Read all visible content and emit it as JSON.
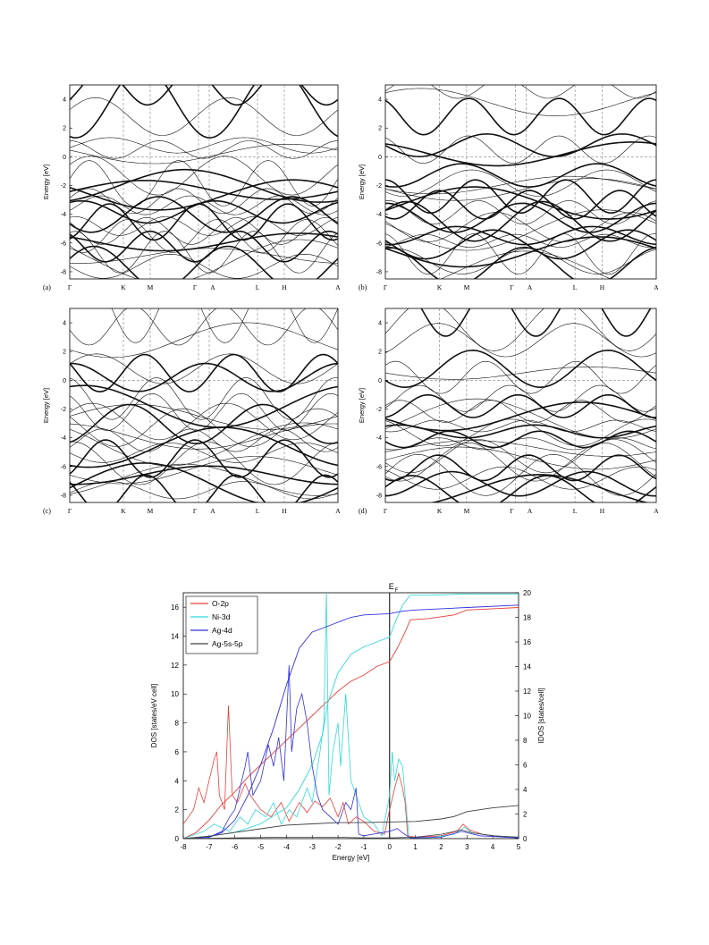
{
  "band_panels": [
    {
      "label": "(a)",
      "ylabel": "Energy [eV]",
      "yticks": [
        "4",
        "2",
        "0",
        "-2",
        "-4",
        "-6",
        "-8"
      ],
      "kpoints": [
        "Γ",
        "K",
        "M",
        "Γ",
        "A",
        "L",
        "H",
        "A"
      ]
    },
    {
      "label": "(b)",
      "ylabel": "Energy [eV]",
      "yticks": [
        "4",
        "2",
        "0",
        "-2",
        "-4",
        "-6",
        "-8"
      ],
      "kpoints": [
        "Γ",
        "K",
        "M",
        "Γ",
        "A",
        "L",
        "H",
        "A"
      ]
    },
    {
      "label": "(c)",
      "ylabel": "Energy [eV]",
      "yticks": [
        "4",
        "2",
        "0",
        "-2",
        "-4",
        "-6",
        "-8"
      ],
      "kpoints": [
        "Γ",
        "K",
        "M",
        "Γ",
        "A",
        "L",
        "H",
        "A"
      ]
    },
    {
      "label": "(d)",
      "ylabel": "Energy [eV]",
      "yticks": [
        "4",
        "2",
        "0",
        "-2",
        "-4",
        "-6",
        "-8"
      ],
      "kpoints": [
        "Γ",
        "K",
        "M",
        "Γ",
        "A",
        "L",
        "H",
        "A"
      ]
    }
  ],
  "chart_data": {
    "type": "line",
    "xlabel": "Energy [eV]",
    "ylabel": "DOS [states/eV cell]",
    "ylabel_right": "IDOS [states/cell]",
    "xlim": [
      -8,
      5
    ],
    "ylim": [
      0,
      17
    ],
    "ylim_right": [
      0,
      20
    ],
    "xticks": [
      "-8",
      "-7",
      "-6",
      "-5",
      "-4",
      "-3",
      "-2",
      "-1",
      "0",
      "1",
      "2",
      "3",
      "4",
      "5"
    ],
    "yticks": [
      "0",
      "2",
      "4",
      "6",
      "8",
      "10",
      "12",
      "14",
      "16"
    ],
    "yticks_right": [
      "0",
      "2",
      "4",
      "6",
      "8",
      "10",
      "12",
      "14",
      "16",
      "18",
      "20"
    ],
    "fermi_label": "E",
    "fermi_sub": "F",
    "fermi_x": 0,
    "legend_position": "top-left",
    "series": [
      {
        "name": "O-2p",
        "color": "#e8403a",
        "dos": [
          [
            -8,
            1.0
          ],
          [
            -7.6,
            2.0
          ],
          [
            -7.4,
            3.5
          ],
          [
            -7.2,
            2.5
          ],
          [
            -7.0,
            4.0
          ],
          [
            -6.8,
            5.5
          ],
          [
            -6.7,
            6.0
          ],
          [
            -6.6,
            3.0
          ],
          [
            -6.4,
            2.0
          ],
          [
            -6.25,
            9.2
          ],
          [
            -6.1,
            3.0
          ],
          [
            -5.9,
            2.5
          ],
          [
            -5.6,
            3.8
          ],
          [
            -5.4,
            3.0
          ],
          [
            -5.0,
            2.0
          ],
          [
            -4.6,
            1.5
          ],
          [
            -4.2,
            2.5
          ],
          [
            -3.9,
            1.2
          ],
          [
            -3.5,
            2.5
          ],
          [
            -3.2,
            1.8
          ],
          [
            -2.9,
            2.6
          ],
          [
            -2.6,
            2.2
          ],
          [
            -2.3,
            2.8
          ],
          [
            -2.0,
            1.5
          ],
          [
            -1.8,
            2.5
          ],
          [
            -1.6,
            1.0
          ],
          [
            -1.3,
            1.5
          ],
          [
            -1.0,
            1.2
          ],
          [
            -0.6,
            0.5
          ],
          [
            -0.2,
            0.3
          ],
          [
            0.0,
            2.0
          ],
          [
            0.2,
            3.5
          ],
          [
            0.35,
            4.5
          ],
          [
            0.5,
            3.5
          ],
          [
            0.6,
            2.5
          ],
          [
            0.7,
            0.2
          ],
          [
            1.0,
            0.1
          ],
          [
            2.0,
            0.2
          ],
          [
            2.6,
            0.5
          ],
          [
            2.85,
            1.0
          ],
          [
            3.1,
            0.6
          ],
          [
            3.6,
            0.3
          ],
          [
            4.5,
            0.1
          ],
          [
            5.0,
            0.1
          ]
        ],
        "idos": [
          [
            -8,
            0
          ],
          [
            -7.5,
            0.5
          ],
          [
            -7,
            1.5
          ],
          [
            -6.5,
            2.8
          ],
          [
            -6,
            3.8
          ],
          [
            -5.5,
            5.0
          ],
          [
            -5,
            6.0
          ],
          [
            -4.5,
            7.0
          ],
          [
            -4,
            8.0
          ],
          [
            -3.5,
            9.0
          ],
          [
            -3,
            10.0
          ],
          [
            -2.5,
            11.0
          ],
          [
            -2,
            12.0
          ],
          [
            -1.5,
            12.8
          ],
          [
            -1,
            13.3
          ],
          [
            -0.5,
            14.0
          ],
          [
            0,
            14.4
          ],
          [
            0.3,
            15.5
          ],
          [
            0.6,
            16.8
          ],
          [
            0.8,
            17.8
          ],
          [
            1.5,
            17.9
          ],
          [
            2.5,
            18.2
          ],
          [
            3.0,
            18.6
          ],
          [
            4.0,
            18.7
          ],
          [
            5.0,
            18.8
          ]
        ]
      },
      {
        "name": "Ni-3d",
        "color": "#30d8d8",
        "dos": [
          [
            -8,
            0.0
          ],
          [
            -7.2,
            0.5
          ],
          [
            -6.8,
            1.0
          ],
          [
            -6.2,
            0.5
          ],
          [
            -5.8,
            1.5
          ],
          [
            -5.5,
            1.0
          ],
          [
            -5.2,
            2.0
          ],
          [
            -4.8,
            1.5
          ],
          [
            -4.5,
            2.5
          ],
          [
            -4.2,
            1.0
          ],
          [
            -3.9,
            2.0
          ],
          [
            -3.6,
            1.5
          ],
          [
            -3.2,
            3.5
          ],
          [
            -3.0,
            2.5
          ],
          [
            -2.7,
            6.0
          ],
          [
            -2.55,
            8.0
          ],
          [
            -2.45,
            17.0
          ],
          [
            -2.35,
            3.0
          ],
          [
            -2.2,
            6.0
          ],
          [
            -2.0,
            8.0
          ],
          [
            -1.9,
            5.0
          ],
          [
            -1.7,
            10.0
          ],
          [
            -1.5,
            4.0
          ],
          [
            -1.3,
            3.0
          ],
          [
            -1.0,
            1.5
          ],
          [
            -0.6,
            1.0
          ],
          [
            -0.3,
            0.2
          ],
          [
            0.0,
            3.0
          ],
          [
            0.1,
            6.0
          ],
          [
            0.2,
            4.0
          ],
          [
            0.35,
            5.5
          ],
          [
            0.5,
            5.0
          ],
          [
            0.6,
            3.0
          ],
          [
            0.75,
            0.1
          ],
          [
            1.5,
            0.05
          ],
          [
            2.5,
            0.3
          ],
          [
            2.9,
            0.8
          ],
          [
            3.2,
            0.4
          ],
          [
            4.0,
            0.2
          ],
          [
            5.0,
            0.1
          ]
        ],
        "idos": [
          [
            -8,
            0
          ],
          [
            -7,
            0.2
          ],
          [
            -6,
            0.5
          ],
          [
            -5,
            1.2
          ],
          [
            -4,
            2.5
          ],
          [
            -3.5,
            4.0
          ],
          [
            -3,
            6.0
          ],
          [
            -2.6,
            8.5
          ],
          [
            -2.4,
            11.0
          ],
          [
            -2,
            13.5
          ],
          [
            -1.5,
            15.0
          ],
          [
            -1,
            15.6
          ],
          [
            -0.5,
            16.0
          ],
          [
            0,
            16.4
          ],
          [
            0.2,
            17.5
          ],
          [
            0.5,
            19.0
          ],
          [
            0.8,
            19.8
          ],
          [
            1.5,
            19.8
          ],
          [
            3.0,
            19.9
          ],
          [
            5.0,
            19.9
          ]
        ]
      },
      {
        "name": "Ag-4d",
        "color": "#3030e0",
        "dos": [
          [
            -8,
            0.0
          ],
          [
            -7.0,
            0.1
          ],
          [
            -6.5,
            0.5
          ],
          [
            -6.2,
            1.5
          ],
          [
            -6.0,
            2.0
          ],
          [
            -5.8,
            3.5
          ],
          [
            -5.6,
            5.0
          ],
          [
            -5.5,
            6.0
          ],
          [
            -5.3,
            3.0
          ],
          [
            -5.0,
            4.0
          ],
          [
            -4.7,
            6.5
          ],
          [
            -4.5,
            5.0
          ],
          [
            -4.3,
            7.0
          ],
          [
            -4.1,
            4.0
          ],
          [
            -3.9,
            12.0
          ],
          [
            -3.8,
            6.0
          ],
          [
            -3.6,
            9.0
          ],
          [
            -3.4,
            10.0
          ],
          [
            -3.2,
            8.0
          ],
          [
            -3.0,
            5.0
          ],
          [
            -2.8,
            3.0
          ],
          [
            -2.6,
            2.0
          ],
          [
            -2.3,
            1.5
          ],
          [
            -2.0,
            1.0
          ],
          [
            -1.7,
            2.5
          ],
          [
            -1.5,
            2.0
          ],
          [
            -1.3,
            3.5
          ],
          [
            -1.2,
            0.3
          ],
          [
            -1.0,
            0.2
          ],
          [
            0.0,
            0.5
          ],
          [
            0.3,
            0.7
          ],
          [
            0.5,
            0.4
          ],
          [
            0.8,
            0.05
          ],
          [
            2.0,
            0.1
          ],
          [
            2.8,
            0.5
          ],
          [
            3.5,
            0.2
          ],
          [
            5.0,
            0.05
          ]
        ],
        "idos": [
          [
            -8,
            0
          ],
          [
            -7,
            0.1
          ],
          [
            -6.5,
            0.5
          ],
          [
            -6,
            1.5
          ],
          [
            -5.5,
            3.5
          ],
          [
            -5,
            6.0
          ],
          [
            -4.5,
            9.0
          ],
          [
            -4,
            12.5
          ],
          [
            -3.5,
            15.5
          ],
          [
            -3,
            16.8
          ],
          [
            -2.5,
            17.2
          ],
          [
            -2,
            17.6
          ],
          [
            -1.5,
            18.0
          ],
          [
            -1,
            18.2
          ],
          [
            0,
            18.3
          ],
          [
            0.5,
            18.5
          ],
          [
            1.0,
            18.6
          ],
          [
            3.0,
            18.8
          ],
          [
            5.0,
            19.0
          ]
        ]
      },
      {
        "name": "Ag-5s-5p",
        "color": "#404040",
        "dos": [
          [
            -8,
            0.0
          ],
          [
            -6,
            0.05
          ],
          [
            -4,
            0.1
          ],
          [
            -2,
            0.1
          ],
          [
            -1,
            0.05
          ],
          [
            0,
            0.05
          ],
          [
            1,
            0.1
          ],
          [
            2,
            0.3
          ],
          [
            2.8,
            0.6
          ],
          [
            3.2,
            0.4
          ],
          [
            4,
            0.2
          ],
          [
            5,
            0.1
          ]
        ],
        "idos": [
          [
            -8,
            0
          ],
          [
            -7,
            0.2
          ],
          [
            -6,
            0.5
          ],
          [
            -5,
            0.8
          ],
          [
            -4,
            1.1
          ],
          [
            -3,
            1.2
          ],
          [
            -2,
            1.3
          ],
          [
            -1,
            1.3
          ],
          [
            0,
            1.35
          ],
          [
            1,
            1.4
          ],
          [
            2,
            1.6
          ],
          [
            2.5,
            1.8
          ],
          [
            3,
            2.2
          ],
          [
            4,
            2.5
          ],
          [
            5,
            2.7
          ]
        ]
      }
    ]
  }
}
